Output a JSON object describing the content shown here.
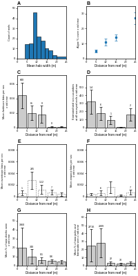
{
  "chart_data": [
    {
      "type": "histogram",
      "title": "A",
      "xlabel": "Mean halo width (m)",
      "ylabel": "Count of reefs",
      "bins": [
        2,
        4,
        6,
        8,
        10,
        12,
        14,
        16,
        18,
        20,
        25
      ],
      "values": [
        0,
        14,
        15,
        46,
        22,
        18,
        10,
        8,
        3,
        2
      ],
      "xlim": [
        0,
        25
      ],
      "xticks": [
        0,
        5,
        10,
        15,
        20,
        25
      ],
      "ylim": [
        0,
        52
      ],
      "yticks": [
        0,
        10,
        20,
        30,
        40,
        50
      ]
    },
    {
      "type": "scatter",
      "title": "B",
      "xlabel": "Distance from reef (m)",
      "ylabel": "Algae % cover ± std error",
      "x": [
        5,
        10,
        15,
        25
      ],
      "values": [
        5,
        11,
        14,
        27
      ],
      "errors": [
        1,
        2.5,
        2,
        4
      ],
      "marker": "square",
      "xlim": [
        0,
        25
      ],
      "xticks": [
        0,
        5,
        10,
        15,
        20,
        25
      ],
      "ylim": [
        0,
        35
      ],
      "yticks": [
        0,
        10,
        20,
        30
      ]
    },
    {
      "type": "bar",
      "title": "C",
      "xlabel": "Distance from reef (m)",
      "ylabel": "Mean herbivore bites per sec\n± std error",
      "x": [
        2.5,
        7.5,
        12.5,
        17.5,
        22.5
      ],
      "values": [
        0.044,
        0.02,
        0.018,
        0.001,
        0.001
      ],
      "errors": [
        0.018,
        0.01,
        0.012,
        0.001,
        0.0005
      ],
      "annotations": [
        {
          "x": 2.5,
          "text": "640"
        },
        {
          "x": 7.5,
          "text": "81"
        },
        {
          "x": 12.5,
          "text": "0"
        },
        {
          "x": 17.5,
          "text": "0"
        }
      ],
      "color": "#cccccc",
      "line_style": "solid",
      "xlim": [
        0,
        25
      ],
      "xticks": [
        0,
        5,
        10,
        15,
        20,
        25
      ],
      "ylim": [
        0,
        0.072
      ],
      "yticks": [
        0,
        0.02,
        0.04,
        0.06
      ]
    },
    {
      "type": "bar",
      "title": "D",
      "xlabel": "Distance from reef (m)",
      "ylabel": "Estimated total sea cucumbers\nat all surveyed reefs ± std error",
      "x": [
        2.5,
        7.5,
        12.5,
        17.5,
        22.5
      ],
      "values": [
        320,
        175,
        90,
        5,
        160
      ],
      "errors": [
        150,
        80,
        50,
        5,
        80
      ],
      "annotations": [
        {
          "x": 2.5,
          "text": "1.4"
        },
        {
          "x": 7.5,
          "text": "6"
        },
        {
          "x": 12.5,
          "text": "1"
        },
        {
          "x": 22.5,
          "text": "2"
        }
      ],
      "color": "#cccccc",
      "line_style": "solid",
      "xlim": [
        0,
        25
      ],
      "xticks": [
        0,
        5,
        10,
        15,
        20,
        25
      ],
      "ylim": [
        0,
        650
      ],
      "yticks": [
        0,
        100,
        200,
        300,
        400,
        500
      ]
    },
    {
      "type": "bar",
      "title": "E",
      "xlabel": "Distance from reef (m)",
      "ylabel": "Mean invertivore bites per sec\n± std error",
      "x": [
        2.5,
        7.5,
        12.5,
        17.5,
        22.5
      ],
      "values": [
        0.0006,
        0.0028,
        0.0012,
        0.0007,
        0.0004
      ],
      "errors": [
        0.0004,
        0.0015,
        0.0008,
        0.0004,
        0.0003
      ],
      "annotations": [
        {
          "x": 2.5,
          "text": "1"
        },
        {
          "x": 7.5,
          "text": "285"
        },
        {
          "x": 12.5,
          "text": "1.12"
        },
        {
          "x": 17.5,
          "text": "7"
        }
      ],
      "color": "#ffffff",
      "line_style": "dotted",
      "xlim": [
        0,
        25
      ],
      "xticks": [
        0,
        5,
        10,
        15,
        20,
        25
      ],
      "ylim": [
        0,
        0.009
      ],
      "yticks": [
        0,
        0.002,
        0.004,
        0.006,
        0.008
      ]
    },
    {
      "type": "bar",
      "title": "F",
      "xlabel": "Distance from reef (m)",
      "ylabel": "Mean emperor bites per sec\n± std error",
      "x": [
        2.5,
        7.5,
        12.5,
        17.5,
        22.5
      ],
      "values": [
        0.0004,
        0.0006,
        0.0016,
        0.0002,
        0.0007
      ],
      "errors": [
        0.0002,
        0.0004,
        0.001,
        0.0001,
        0.0004
      ],
      "annotations": [
        {
          "x": 7.5,
          "text": "6"
        },
        {
          "x": 22.5,
          "text": "7"
        }
      ],
      "color": "#ffffff",
      "line_style": "dotted",
      "xlim": [
        0,
        25
      ],
      "xticks": [
        0,
        5,
        10,
        15,
        20,
        25
      ],
      "ylim": [
        0,
        0.009
      ],
      "yticks": [
        0,
        0.002,
        0.004,
        0.006,
        0.008
      ]
    },
    {
      "type": "bar",
      "title": "G",
      "xlabel": "Distance from reef (m)",
      "ylabel": "Mean % of tuna sharks seen\n± std error",
      "x": [
        2.5,
        7.5,
        12.5,
        17.5,
        22.5
      ],
      "values": [
        20,
        10,
        6,
        5,
        4
      ],
      "errors": [
        22,
        8,
        3,
        2,
        2
      ],
      "annotations": [
        {
          "x": 2.5,
          "text": "3060"
        },
        {
          "x": 7.5,
          "text": "340"
        },
        {
          "x": 12.5,
          "text": "0.1"
        },
        {
          "x": 17.5,
          "text": "0.6"
        }
      ],
      "color": "#cccccc",
      "line_style": "solid",
      "xlim": [
        0,
        25
      ],
      "xticks": [
        0,
        5,
        10,
        15,
        20,
        25
      ],
      "ylim": [
        0,
        58
      ],
      "yticks": [
        0,
        10,
        20,
        30,
        40,
        50
      ]
    },
    {
      "type": "bar",
      "title": "H",
      "xlabel": "Distance from reef (m)",
      "ylabel": "Mean % of tuna jacks and\nbarracuda seen ± std error",
      "x": [
        2.5,
        7.5,
        12.5,
        17.5,
        22.5
      ],
      "values": [
        25,
        28,
        3,
        2,
        3
      ],
      "errors": [
        20,
        18,
        2,
        1.5,
        2
      ],
      "annotations": [
        {
          "x": 2.5,
          "text": "29*16"
        },
        {
          "x": 7.5,
          "text": "2009"
        },
        {
          "x": 12.5,
          "text": "22"
        },
        {
          "x": 17.5,
          "text": "30"
        }
      ],
      "color": "#cccccc",
      "line_style": "solid",
      "xlim": [
        0,
        25
      ],
      "xticks": [
        0,
        5,
        10,
        15,
        20,
        25
      ],
      "ylim": [
        0,
        65
      ],
      "yticks": [
        0,
        10,
        20,
        30,
        40,
        50,
        60
      ]
    }
  ]
}
